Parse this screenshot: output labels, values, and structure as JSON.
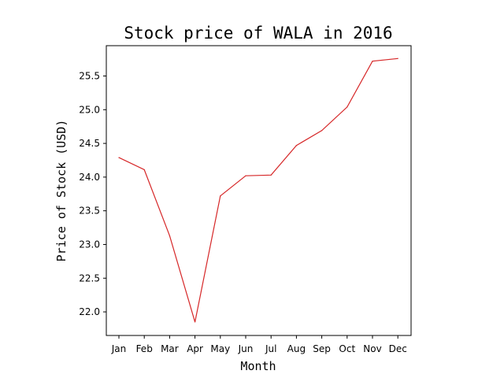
{
  "chart_data": {
    "type": "line",
    "title": "Stock price of WALA in 2016",
    "xlabel": "Month",
    "ylabel": "Price of Stock (USD)",
    "categories": [
      "Jan",
      "Feb",
      "Mar",
      "Apr",
      "May",
      "Jun",
      "Jul",
      "Aug",
      "Sep",
      "Oct",
      "Nov",
      "Dec"
    ],
    "series": [
      {
        "values": [
          24.29,
          24.11,
          23.13,
          21.85,
          23.72,
          24.02,
          24.03,
          24.47,
          24.69,
          25.04,
          25.72,
          25.76
        ],
        "color": "#d62728"
      }
    ],
    "yticks": [
      "22.0",
      "22.5",
      "23.0",
      "23.5",
      "24.0",
      "24.5",
      "25.0",
      "25.5"
    ],
    "ylim": [
      21.65,
      25.95
    ],
    "grid": false,
    "legend": "none"
  }
}
